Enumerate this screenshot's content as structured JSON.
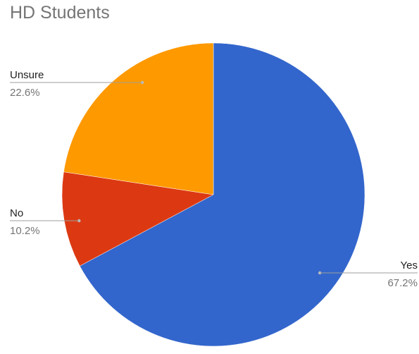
{
  "chart_data": {
    "type": "pie",
    "title": "HD Students",
    "slices": [
      {
        "label": "Yes",
        "percent_label": "67.2%",
        "value": 67.2,
        "color": "#3366cc"
      },
      {
        "label": "No",
        "percent_label": "10.2%",
        "value": 10.2,
        "color": "#dc3912"
      },
      {
        "label": "Unsure",
        "percent_label": "22.6%",
        "value": 22.6,
        "color": "#ff9900"
      }
    ],
    "start_angle_deg": 0,
    "direction": "clockwise",
    "label_style": "outside-with-leader-lines"
  }
}
